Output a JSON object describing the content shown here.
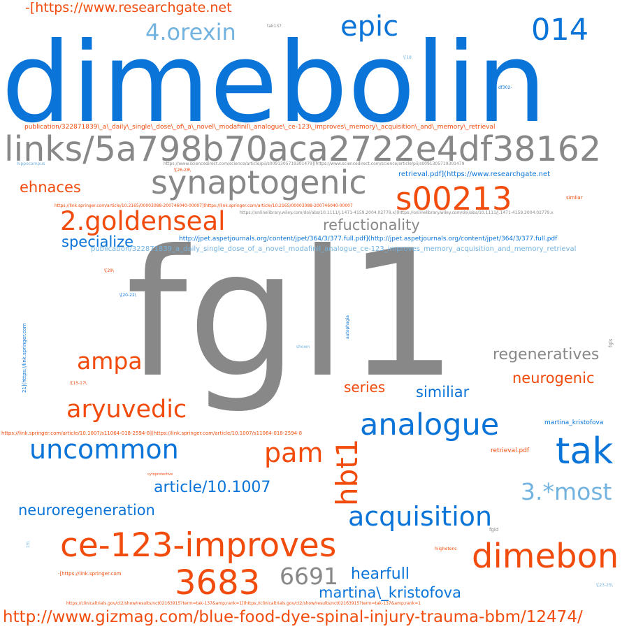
{
  "palette": {
    "blue": "#0a74d8",
    "orange": "#f14c0d",
    "gray": "#888888",
    "light_blue": "#73b3e0",
    "background": "#ffffff"
  },
  "words": {
    "dimebolin": "dimebolin",
    "fgl1": "fgl1",
    "links_5a798b": "links/5a798b70aca2722e4df38162",
    "synaptogenic": "synaptogenic",
    "s00213": "s00213",
    "goldenseal": "2.goldenseal",
    "ce123": "ce-123-improves",
    "dimebon": "dimebon",
    "n3683": "3683",
    "analogue": "analogue",
    "acquisition": "acquisition",
    "tak": "tak",
    "uncommon": "uncommon",
    "aryuvedic": "aryuvedic",
    "ampa": "ampa",
    "pam": "pam",
    "hbt1": "hbt1",
    "epic": "epic",
    "n014": "014",
    "orexin": "4.orexin",
    "most": "3.*most",
    "n6691": "6691",
    "hearfull": "hearfull",
    "martina_kristofova_esc": "martina\\_kristofova",
    "neuroregeneration": "neuroregeneration",
    "article": "article/10.1007",
    "regeneratives": "regeneratives",
    "neurogenic": "neurogenic",
    "similiar": "similiar",
    "series": "series",
    "specialize": "specialize",
    "refuctionality": "refuctionality",
    "ehnaces": "ehnaces",
    "researchgate_top": "-[https://www.researchgate.net",
    "gizmag": "http://www.gizmag.com/blue-food-dye-spinal-injury-trauma-bbm/12474/",
    "pub_retrieval": "publication/322871839\\_a\\_daily\\_single\\_dose\\_of\\_a\\_novel\\_modafinil\\_analogue\\_ce-123\\_improves\\_memory\\_acquisition\\_and\\_memory\\_retrieval",
    "pub_retrieval_plain": "publication/322871839_a_daily_single_dose_of_a_novel_modafinil_analogue_ce-123_improves_memory_acquisition_and_memory_retrieval",
    "jpet": "http://jpet.aspetjournals.org/content/jpet/364/3/377.full.pdf](http://jpet.aspetjournals.org/content/jpet/364/3/377.full.pdf",
    "retrieval_pdf_rg": "retrieval.pdf](https://www.researchgate.net",
    "sciencedirect": "https://www.sciencedirect.com/science/article/pii/s0091305719301479](https://www.sciencedirect.com/science/article/pii/s0091305719301479",
    "springer_s00213": "https://link.springer.com/article/10.2165/00003088-200746040-00007](https://link.springer.com/article/10.2165/00003088-200746040-00007",
    "wiley": "https://onlinelibrary.wiley.com/doi/abs/10.1111/j.1471-4159.2004.02779.x](https://onlinelibrary.wiley.com/doi/abs/10.1111/j.1471-4159.2004.02779.x",
    "springer_s11064": "https://link.springer.com/article/10.1007/s11064-018-2594-8](https://link.springer.com/article/10.1007/s11064-018-2594-8",
    "clinicaltrials": "https://clinicaltrials.gov/ct2/show/results/nct02163915?term=tak-137&amp;rank=1](https://clinicaltrials.gov/ct2/show/results/nct02163915?term=tak-137&amp;rank=1",
    "martina_kristofova": "martina_kristofova",
    "retrieval_pdf": "retrieval.pdf",
    "springer_bracket": "-[https://link.springer.com",
    "hippocampus": "hippocampus",
    "simliar": "simliar",
    "tak137": "tak137",
    "df302": "df302-",
    "b18": "\\[18",
    "b26_28": "\\[26-28\\",
    "b29": "\\[29\\",
    "b20_22": "\\[20-22\\",
    "b15_17": "\\[15-17\\",
    "b23_25": "\\[23-25\\",
    "b15": "15\\",
    "springer_21": "21](https://link.springer.com",
    "autophagia": "autophagia",
    "shown": "shown",
    "fgls": "fgls",
    "fgld": "fgld",
    "cytoprotective": "cytoprotective",
    "heightens": "hiighetens"
  }
}
